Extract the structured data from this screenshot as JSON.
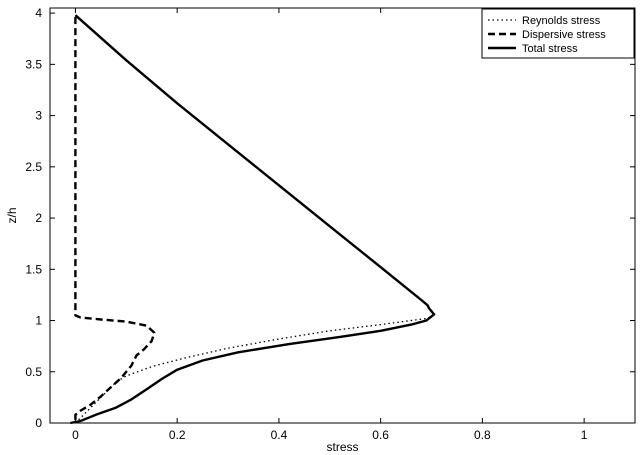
{
  "chart_data": {
    "type": "line",
    "title": "",
    "xlabel": "stress",
    "ylabel": "z/h",
    "xlim": [
      -0.05,
      1.1
    ],
    "ylim": [
      0,
      4.05
    ],
    "xticks": [
      0,
      0.2,
      0.4,
      0.6,
      0.8,
      1
    ],
    "xtick_labels": [
      "0",
      "0.2",
      "0.4",
      "0.6",
      "0.8",
      "1"
    ],
    "yticks": [
      0,
      0.5,
      1,
      1.5,
      2,
      2.5,
      3,
      3.5,
      4
    ],
    "ytick_labels": [
      "0",
      "0.5",
      "1",
      "1.5",
      "2",
      "2.5",
      "3",
      "3.5",
      "4"
    ],
    "grid": false,
    "legend_position": "top-right",
    "series": [
      {
        "name": "Reynolds stress",
        "style": "dotted",
        "color": "#000000",
        "points": [
          [
            0.0,
            0.0
          ],
          [
            0.02,
            0.1
          ],
          [
            0.04,
            0.2
          ],
          [
            0.06,
            0.3
          ],
          [
            0.08,
            0.4
          ],
          [
            0.1,
            0.46
          ],
          [
            0.15,
            0.55
          ],
          [
            0.22,
            0.64
          ],
          [
            0.3,
            0.73
          ],
          [
            0.4,
            0.82
          ],
          [
            0.5,
            0.9
          ],
          [
            0.6,
            0.96
          ],
          [
            0.66,
            1.0
          ],
          [
            0.69,
            1.02
          ],
          [
            0.7,
            1.04
          ]
        ]
      },
      {
        "name": "Dispersive stress",
        "style": "dashed",
        "color": "#000000",
        "points": [
          [
            0.0,
            0.03
          ],
          [
            0.0,
            0.08
          ],
          [
            0.01,
            0.12
          ],
          [
            0.03,
            0.18
          ],
          [
            0.05,
            0.26
          ],
          [
            0.07,
            0.35
          ],
          [
            0.09,
            0.44
          ],
          [
            0.11,
            0.56
          ],
          [
            0.12,
            0.66
          ],
          [
            0.135,
            0.72
          ],
          [
            0.15,
            0.8
          ],
          [
            0.155,
            0.88
          ],
          [
            0.14,
            0.95
          ],
          [
            0.1,
            0.99
          ],
          [
            0.05,
            1.01
          ],
          [
            0.01,
            1.03
          ],
          [
            0.0,
            1.05
          ],
          [
            0.0,
            1.2
          ],
          [
            0.0,
            1.5
          ],
          [
            0.0,
            2.0
          ],
          [
            0.0,
            2.5
          ],
          [
            0.0,
            3.0
          ],
          [
            0.0,
            3.5
          ],
          [
            0.0,
            3.98
          ]
        ]
      },
      {
        "name": "Total stress",
        "style": "solid",
        "color": "#000000",
        "points": [
          [
            -0.01,
            0.0
          ],
          [
            0.01,
            0.02
          ],
          [
            0.04,
            0.08
          ],
          [
            0.08,
            0.15
          ],
          [
            0.11,
            0.23
          ],
          [
            0.14,
            0.33
          ],
          [
            0.17,
            0.43
          ],
          [
            0.2,
            0.52
          ],
          [
            0.25,
            0.61
          ],
          [
            0.32,
            0.69
          ],
          [
            0.42,
            0.77
          ],
          [
            0.52,
            0.84
          ],
          [
            0.6,
            0.9
          ],
          [
            0.66,
            0.96
          ],
          [
            0.69,
            1.0
          ],
          [
            0.7,
            1.04
          ],
          [
            0.705,
            1.06
          ],
          [
            0.7,
            1.09
          ],
          [
            0.695,
            1.12
          ],
          [
            0.692,
            1.15
          ],
          [
            0.68,
            1.2
          ],
          [
            0.6,
            1.52
          ],
          [
            0.5,
            1.92
          ],
          [
            0.4,
            2.32
          ],
          [
            0.3,
            2.72
          ],
          [
            0.2,
            3.12
          ],
          [
            0.1,
            3.54
          ],
          [
            0.0,
            3.98
          ]
        ]
      }
    ]
  }
}
